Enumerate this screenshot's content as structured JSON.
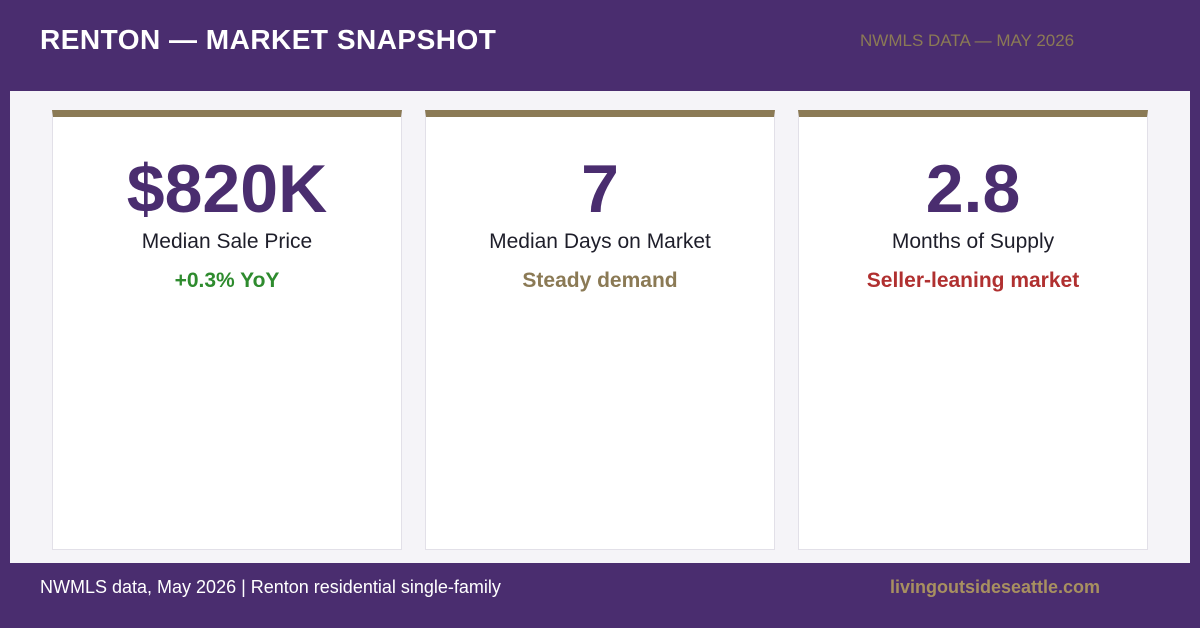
{
  "header": {
    "title": "RENTON — MARKET SNAPSHOT",
    "source": "NWMLS DATA — MAY 2026"
  },
  "cards": [
    {
      "value": "$820K",
      "label": "Median Sale Price",
      "note": "+0.3% YoY"
    },
    {
      "value": "7",
      "label": "Median Days on Market",
      "note": "Steady demand"
    },
    {
      "value": "2.8",
      "label": "Months of Supply",
      "note": "Seller-leaning market"
    }
  ],
  "footer": {
    "left": "NWMLS data, May 2026 | Renton residential single-family",
    "right": "livingoutsideseattle.com"
  }
}
